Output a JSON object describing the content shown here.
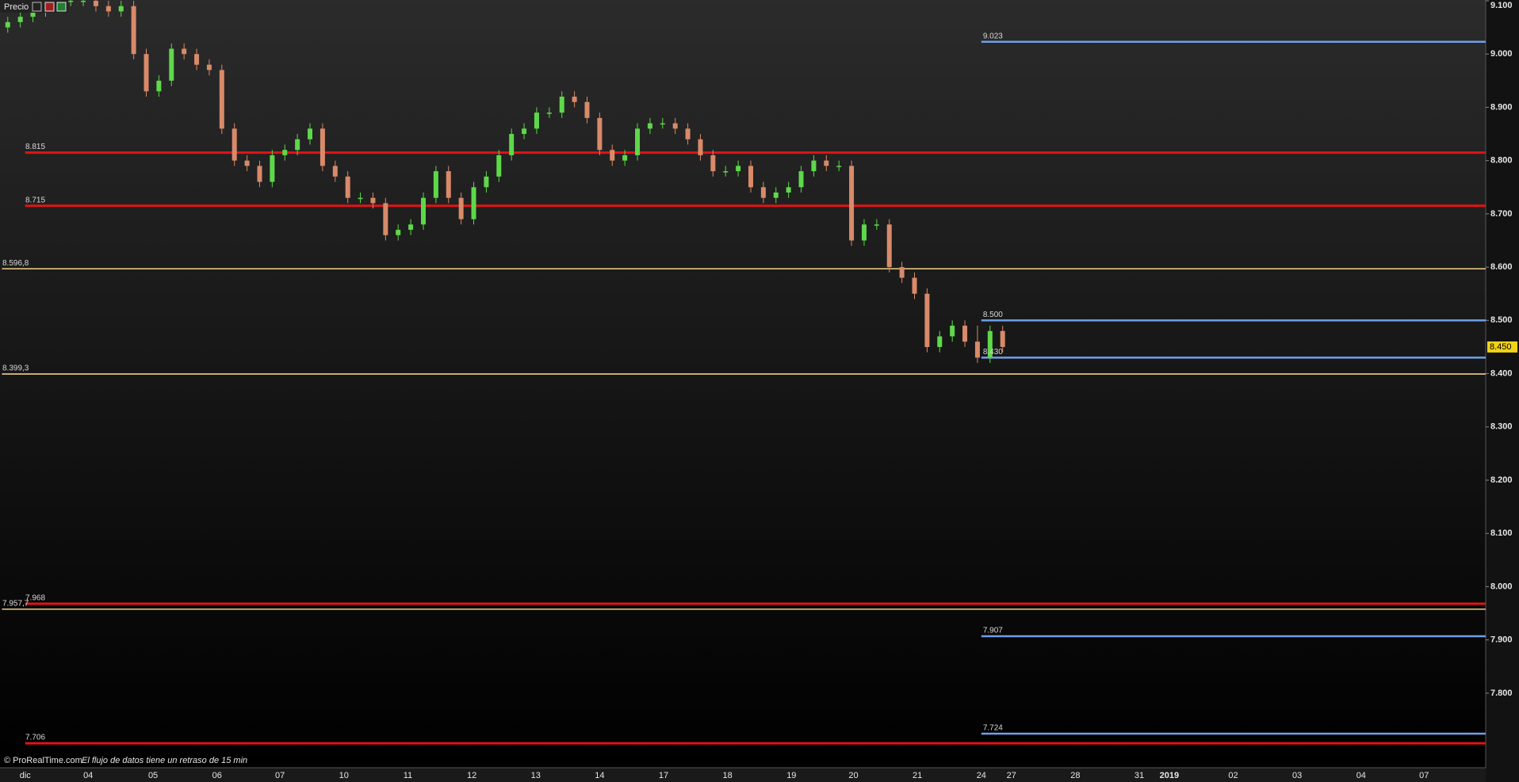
{
  "chart_data": {
    "type": "candlestick",
    "title": "Precio",
    "footnote": "© ProRealTime.com",
    "note": "El flujo de datos tiene un retraso de 15 min",
    "categories": [
      "dic",
      "04",
      "05",
      "06",
      "07",
      "10",
      "11",
      "12",
      "13",
      "14",
      "17",
      "18",
      "19",
      "20",
      "21",
      "24",
      "27",
      "28",
      "31",
      "2019",
      "02",
      "03",
      "04",
      "07"
    ],
    "ylim": [
      7.66,
      9.1
    ],
    "yticks": [
      {
        "value": 9.1,
        "label": "9.100"
      },
      {
        "value": 9.0,
        "label": "9.000"
      },
      {
        "value": 8.9,
        "label": "8.900"
      },
      {
        "value": 8.8,
        "label": "8.800"
      },
      {
        "value": 8.7,
        "label": "8.700"
      },
      {
        "value": 8.6,
        "label": "8.600"
      },
      {
        "value": 8.5,
        "label": "8.500"
      },
      {
        "value": 8.4,
        "label": "8.400"
      },
      {
        "value": 8.3,
        "label": "8.300"
      },
      {
        "value": 8.2,
        "label": "8.200"
      },
      {
        "value": 8.1,
        "label": "8.100"
      },
      {
        "value": 8.0,
        "label": "8.000"
      },
      {
        "value": 7.9,
        "label": "7.900"
      },
      {
        "value": 7.8,
        "label": "7.800"
      }
    ],
    "series": {
      "up_color": "#5ed84a",
      "down_color": "#d88a6a",
      "open": [
        9.05,
        9.06,
        9.07,
        9.08,
        9.09,
        9.1,
        9.1,
        9.1,
        9.09,
        9.08,
        9.09,
        9.0,
        8.93,
        8.95,
        9.01,
        9.0,
        8.98,
        8.97,
        8.86,
        8.8,
        8.79,
        8.76,
        8.81,
        8.82,
        8.84,
        8.86,
        8.79,
        8.77,
        8.73,
        8.73,
        8.72,
        8.66,
        8.67,
        8.68,
        8.73,
        8.78,
        8.73,
        8.69,
        8.75,
        8.77,
        8.81,
        8.85,
        8.86,
        8.89,
        8.89,
        8.92,
        8.91,
        8.88,
        8.82,
        8.8,
        8.81,
        8.86,
        8.87,
        8.87,
        8.86,
        8.84,
        8.81,
        8.78,
        8.78,
        8.79,
        8.75,
        8.73,
        8.74,
        8.75,
        8.78,
        8.8,
        8.79,
        8.79,
        8.65,
        8.68,
        8.68,
        8.6,
        8.58,
        8.55,
        8.45,
        8.47,
        8.49,
        8.46,
        8.43,
        8.48
      ],
      "high": [
        9.07,
        9.08,
        9.09,
        9.1,
        9.11,
        9.11,
        9.11,
        9.11,
        9.1,
        9.1,
        9.1,
        9.01,
        8.96,
        9.02,
        9.02,
        9.01,
        8.99,
        8.98,
        8.87,
        8.81,
        8.8,
        8.82,
        8.83,
        8.85,
        8.87,
        8.87,
        8.8,
        8.78,
        8.74,
        8.74,
        8.73,
        8.68,
        8.69,
        8.74,
        8.79,
        8.79,
        8.74,
        8.76,
        8.78,
        8.82,
        8.86,
        8.87,
        8.9,
        8.9,
        8.93,
        8.93,
        8.92,
        8.89,
        8.83,
        8.82,
        8.87,
        8.88,
        8.88,
        8.88,
        8.87,
        8.85,
        8.82,
        8.79,
        8.8,
        8.8,
        8.76,
        8.75,
        8.76,
        8.79,
        8.81,
        8.81,
        8.8,
        8.8,
        8.69,
        8.69,
        8.69,
        8.61,
        8.59,
        8.56,
        8.48,
        8.5,
        8.5,
        8.49,
        8.49,
        8.49
      ],
      "low": [
        9.04,
        9.05,
        9.06,
        9.07,
        9.08,
        9.09,
        9.09,
        9.08,
        9.07,
        9.07,
        8.99,
        8.92,
        8.92,
        8.94,
        8.99,
        8.97,
        8.96,
        8.85,
        8.79,
        8.78,
        8.75,
        8.75,
        8.8,
        8.81,
        8.83,
        8.78,
        8.76,
        8.72,
        8.72,
        8.71,
        8.65,
        8.65,
        8.66,
        8.67,
        8.72,
        8.72,
        8.68,
        8.68,
        8.74,
        8.76,
        8.8,
        8.84,
        8.85,
        8.88,
        8.88,
        8.9,
        8.87,
        8.81,
        8.79,
        8.79,
        8.8,
        8.85,
        8.86,
        8.85,
        8.83,
        8.8,
        8.77,
        8.77,
        8.77,
        8.74,
        8.72,
        8.72,
        8.73,
        8.74,
        8.77,
        8.78,
        8.78,
        8.64,
        8.64,
        8.67,
        8.59,
        8.57,
        8.54,
        8.44,
        8.44,
        8.46,
        8.45,
        8.42,
        8.42,
        8.44
      ],
      "close": [
        9.06,
        9.07,
        9.08,
        9.09,
        9.1,
        9.1,
        9.1,
        9.09,
        9.08,
        9.09,
        9.0,
        8.93,
        8.95,
        9.01,
        9.0,
        8.98,
        8.97,
        8.86,
        8.8,
        8.79,
        8.76,
        8.81,
        8.82,
        8.84,
        8.86,
        8.79,
        8.77,
        8.73,
        8.73,
        8.72,
        8.66,
        8.67,
        8.68,
        8.73,
        8.78,
        8.73,
        8.69,
        8.75,
        8.77,
        8.81,
        8.85,
        8.86,
        8.89,
        8.89,
        8.92,
        8.91,
        8.88,
        8.82,
        8.8,
        8.81,
        8.86,
        8.87,
        8.87,
        8.86,
        8.84,
        8.81,
        8.78,
        8.78,
        8.79,
        8.75,
        8.73,
        8.74,
        8.75,
        8.78,
        8.8,
        8.79,
        8.79,
        8.65,
        8.68,
        8.68,
        8.6,
        8.58,
        8.55,
        8.45,
        8.47,
        8.49,
        8.46,
        8.43,
        8.48,
        8.45
      ]
    },
    "red_levels": {
      "color": "#e01414",
      "levels": [
        {
          "value": 8.815,
          "label": "8.815"
        },
        {
          "value": 8.715,
          "label": "8.715"
        },
        {
          "value": 7.968,
          "label": "7.968"
        },
        {
          "value": 7.706,
          "label": "7.706"
        }
      ]
    },
    "yellow_levels": {
      "color": "#f3d08a",
      "levels": [
        {
          "value": 8.5968,
          "label": "8.596,8"
        },
        {
          "value": 8.3993,
          "label": "8.399,3"
        },
        {
          "value": 7.9577,
          "label": "7.957,7"
        }
      ]
    },
    "blue_levels": {
      "color": "#6f9fea",
      "levels": [
        {
          "value": 9.023,
          "label": "9.023"
        },
        {
          "value": 8.5,
          "label": "8.500"
        },
        {
          "value": 8.43,
          "label": "8.430"
        },
        {
          "value": 7.907,
          "label": "7.907"
        },
        {
          "value": 7.724,
          "label": "7.724"
        }
      ]
    },
    "last": {
      "value": 8.45,
      "label": "8.450",
      "color": "#f2d21a"
    }
  }
}
